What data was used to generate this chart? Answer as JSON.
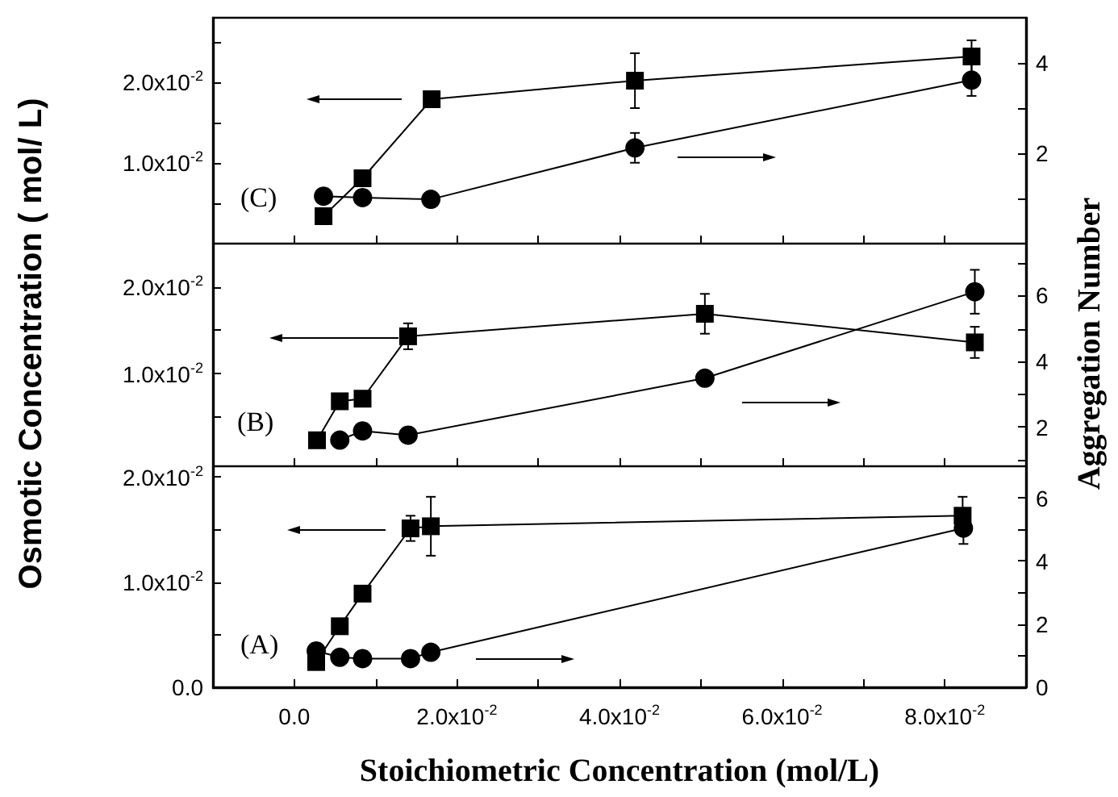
{
  "chart_data": [
    {
      "type": "line",
      "annotations": [
        "(C)"
      ],
      "tick_labels": "y",
      "grid": false,
      "xlim": [
        -0.01,
        0.09
      ],
      "xticks": [
        {
          "value": -0.01,
          "label": null
        },
        {
          "value": 0,
          "label": null
        },
        {
          "value": 0.01,
          "label": null
        },
        {
          "value": 0.02,
          "label": null
        },
        {
          "value": 0.03,
          "label": null
        },
        {
          "value": 0.04,
          "label": null
        },
        {
          "value": 0.05,
          "label": null
        },
        {
          "value": 0.06,
          "label": null
        },
        {
          "value": 0.07,
          "label": null
        },
        {
          "value": 0.08,
          "label": null
        }
      ],
      "ylim": [
        0,
        0.028
      ],
      "yticks": [
        {
          "value": 0.005,
          "label": null
        },
        {
          "value": 0.01,
          "label": "1.0x10$^{-2}$"
        },
        {
          "value": 0.015,
          "label": null
        },
        {
          "value": 0.02,
          "label": "2.0x10$^{-2}$"
        },
        {
          "value": 0.025,
          "label": null
        }
      ],
      "y2lim": [
        0,
        5
      ],
      "y2ticks": [
        {
          "value": 1,
          "label": null
        },
        2,
        {
          "value": 3,
          "label": null
        },
        4
      ],
      "series": [
        {
          "color": "#000000",
          "marker": "square",
          "x": [
            0.0036,
            0.0084,
            0.0169,
            0.0419,
            0.0833
          ],
          "values": [
            0.0034,
            0.0081,
            0.0179,
            0.0202,
            0.0232
          ],
          "errors": [
            null,
            null,
            0.0005,
            0.0034,
            0.002
          ]
        },
        {
          "color": "#000000",
          "marker": "circle",
          "axis": "y2",
          "x": [
            0.0036,
            0.0084,
            0.0168,
            0.0419,
            0.0833
          ],
          "values": [
            1.05,
            1.02,
            0.98,
            2.12,
            3.62
          ],
          "errors": [
            null,
            null,
            null,
            0.33,
            0.35
          ]
        }
      ]
    },
    {
      "type": "line",
      "annotations": [
        "(B)"
      ],
      "tick_labels": "y",
      "grid": false,
      "ylabel": "Osmotic Concentration ( mol/ L)",
      "y2label": "Aggregation Number",
      "xlim": [
        -0.01,
        0.09
      ],
      "xticks": [
        {
          "value": -0.01,
          "label": null
        },
        {
          "value": 0,
          "label": null
        },
        {
          "value": 0.01,
          "label": null
        },
        {
          "value": 0.02,
          "label": null
        },
        {
          "value": 0.03,
          "label": null
        },
        {
          "value": 0.04,
          "label": null
        },
        {
          "value": 0.05,
          "label": null
        },
        {
          "value": 0.06,
          "label": null
        },
        {
          "value": 0.07,
          "label": null
        },
        {
          "value": 0.08,
          "label": null
        }
      ],
      "ylim": [
        -0.0007,
        0.025
      ],
      "yticks": [
        {
          "value": 0.005,
          "label": null
        },
        {
          "value": 0.01,
          "label": "1.0x10$^{-2}$"
        },
        {
          "value": 0.015,
          "label": null
        },
        {
          "value": 0.02,
          "label": "2.0x10$^{-2}$"
        }
      ],
      "y2lim": [
        0.8,
        7.6
      ],
      "y2ticks": [
        {
          "value": 1,
          "label": null
        },
        2,
        {
          "value": 3,
          "label": null
        },
        4,
        {
          "value": 5,
          "label": null
        },
        6,
        {
          "value": 7,
          "label": null
        }
      ],
      "series": [
        {
          "color": "#000000",
          "marker": "square",
          "x": [
            0.0028,
            0.0056,
            0.0084,
            0.014,
            0.0505,
            0.0837
          ],
          "values": [
            0.0023,
            0.0068,
            0.0071,
            0.0143,
            0.0169,
            0.0136
          ],
          "errors": [
            null,
            null,
            null,
            0.0015,
            0.0023,
            0.0018
          ]
        },
        {
          "color": "#000000",
          "marker": "circle",
          "axis": "y2",
          "x": [
            0.0056,
            0.0084,
            0.014,
            0.0505,
            0.0837
          ],
          "values": [
            1.6,
            1.88,
            1.75,
            3.49,
            6.13
          ],
          "errors": [
            null,
            null,
            null,
            null,
            0.67
          ]
        }
      ]
    },
    {
      "type": "line",
      "annotations": [
        "(A)"
      ],
      "grid": false,
      "xlabel": "Stoichiometric Concentration (mol/L)",
      "xlim": [
        -0.01,
        0.09
      ],
      "xticks": [
        {
          "value": -0.01,
          "label": null
        },
        {
          "value": 0,
          "label": "0.0"
        },
        {
          "value": 0.01,
          "label": null
        },
        {
          "value": 0.02,
          "label": "2.0x10$^{-2}$"
        },
        {
          "value": 0.03,
          "label": null
        },
        {
          "value": 0.04,
          "label": "4.0x10$^{-2}$"
        },
        {
          "value": 0.05,
          "label": null
        },
        {
          "value": 0.06,
          "label": "6.0x10$^{-2}$"
        },
        {
          "value": 0.07,
          "label": null
        },
        {
          "value": 0.08,
          "label": "8.0x10$^{-2}$"
        }
      ],
      "ylim": [
        0,
        0.021
      ],
      "yticks": [
        {
          "value": 0,
          "label": "0.0"
        },
        {
          "value": 0.005,
          "label": null
        },
        {
          "value": 0.01,
          "label": "1.0x10$^{-2}$"
        },
        {
          "value": 0.015,
          "label": null
        },
        {
          "value": 0.02,
          "label": "2.0x10$^{-2}$"
        }
      ],
      "y2lim": [
        0,
        7
      ],
      "y2ticks": [
        0,
        {
          "value": 1,
          "label": null
        },
        2,
        {
          "value": 3,
          "label": null
        },
        4,
        {
          "value": 5,
          "label": null
        },
        6
      ],
      "series": [
        {
          "color": "#000000",
          "marker": "square",
          "x": [
            0.0027,
            0.0056,
            0.0084,
            0.0143,
            0.0168,
            0.0822
          ],
          "values": [
            0.0024,
            0.0058,
            0.0089,
            0.0151,
            0.0153,
            0.0163
          ],
          "errors": [
            null,
            null,
            0.0006,
            0.0012,
            0.0028,
            0.0018
          ]
        },
        {
          "color": "#000000",
          "marker": "circle",
          "axis": "y2",
          "x": [
            0.0027,
            0.0056,
            0.0084,
            0.0143,
            0.0168,
            0.0823
          ],
          "values": [
            1.15,
            0.95,
            0.91,
            0.91,
            1.11,
            5.04
          ],
          "errors": [
            null,
            null,
            null,
            null,
            null,
            0.5
          ]
        }
      ]
    }
  ]
}
